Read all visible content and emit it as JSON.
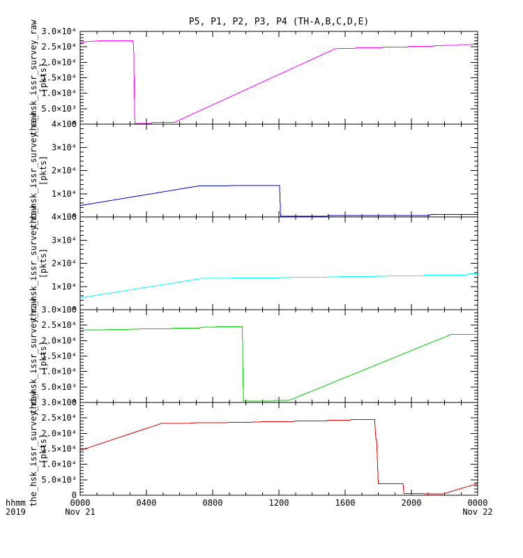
{
  "title": "P5, P1, P2, P3, P4 (TH-A,B,C,D,E)",
  "chart_data": {
    "type": "line",
    "title": "P5, P1, P2, P3, P4 (TH-A,B,C,D,E)",
    "grid": false,
    "legend": "none",
    "time_axis": {
      "unit_label": "hhmm",
      "year_label": "2019",
      "range_hours": [
        0,
        24
      ],
      "minor_tick_hours": 1,
      "major_ticks": [
        {
          "hour": 0,
          "label": "0000",
          "date": "Nov 21"
        },
        {
          "hour": 4,
          "label": "0400"
        },
        {
          "hour": 8,
          "label": "0800"
        },
        {
          "hour": 12,
          "label": "1200"
        },
        {
          "hour": 16,
          "label": "1600"
        },
        {
          "hour": 20,
          "label": "2000"
        },
        {
          "hour": 24,
          "label": "0000",
          "date": "Nov 22"
        }
      ]
    },
    "panels": [
      {
        "id": "tha",
        "ylabel": "tha_hsk_issr_survey_raw",
        "yunits": "[pkts]",
        "color": "#ff00ff",
        "ylim": [
          0,
          30000
        ],
        "ytick_minor_step": 1000,
        "yticks": [
          {
            "v": 0,
            "label": "0"
          },
          {
            "v": 5000,
            "label": "5.0×10³"
          },
          {
            "v": 10000,
            "label": "1.0×10⁴"
          },
          {
            "v": 15000,
            "label": "1.5×10⁴"
          },
          {
            "v": 20000,
            "label": "2.0×10⁴"
          },
          {
            "v": 25000,
            "label": "2.5×10⁴"
          },
          {
            "v": 30000,
            "label": "3.0×10⁴"
          }
        ],
        "points": [
          [
            0,
            26500
          ],
          [
            1.3,
            27000
          ],
          [
            3.2,
            27000
          ],
          [
            3.23,
            24000
          ],
          [
            3.27,
            9000
          ],
          [
            3.3,
            200
          ],
          [
            4.3,
            200
          ],
          [
            4.35,
            600
          ],
          [
            5.7,
            600
          ],
          [
            15.4,
            24400
          ],
          [
            16.6,
            24500
          ],
          [
            16.65,
            24700
          ],
          [
            18.2,
            24700
          ],
          [
            18.25,
            24900
          ],
          [
            19.8,
            24900
          ],
          [
            19.85,
            25100
          ],
          [
            21.3,
            25200
          ],
          [
            21.35,
            25400
          ],
          [
            22.8,
            25500
          ],
          [
            22.85,
            25700
          ],
          [
            24,
            25800
          ]
        ]
      },
      {
        "id": "thb",
        "ylabel": "thb_hsk_issr_survey_raw",
        "yunits": "[pkts]",
        "color": "#0000cc",
        "ylim": [
          0,
          40000
        ],
        "ytick_minor_step": 2000,
        "yticks": [
          {
            "v": 0,
            "label": "0"
          },
          {
            "v": 10000,
            "label": "1×10⁴"
          },
          {
            "v": 20000,
            "label": "2×10⁴"
          },
          {
            "v": 30000,
            "label": "3×10⁴"
          },
          {
            "v": 40000,
            "label": "4×10⁴"
          }
        ],
        "points": [
          [
            0,
            4900
          ],
          [
            7.2,
            13400
          ],
          [
            9.0,
            13450
          ],
          [
            9.05,
            13600
          ],
          [
            12.04,
            13600
          ],
          [
            12.1,
            300
          ],
          [
            14.9,
            300
          ],
          [
            14.95,
            600
          ],
          [
            21.1,
            600
          ],
          [
            21.15,
            1000
          ],
          [
            24,
            1000
          ]
        ]
      },
      {
        "id": "thc",
        "ylabel": "thc_hsk_issr_survey_raw",
        "yunits": "[pkts]",
        "color": "#00ffff",
        "ylim": [
          0,
          40000
        ],
        "ytick_minor_step": 2000,
        "yticks": [
          {
            "v": 0,
            "label": "0"
          },
          {
            "v": 10000,
            "label": "1×10⁴"
          },
          {
            "v": 20000,
            "label": "2×10⁴"
          },
          {
            "v": 30000,
            "label": "3×10⁴"
          },
          {
            "v": 40000,
            "label": "4×10⁴"
          }
        ],
        "points": [
          [
            0,
            5100
          ],
          [
            7.4,
            13500
          ],
          [
            9.1,
            13550
          ],
          [
            9.15,
            13700
          ],
          [
            12.0,
            13700
          ],
          [
            12.05,
            13900
          ],
          [
            14.9,
            13950
          ],
          [
            14.95,
            14200
          ],
          [
            17.8,
            14250
          ],
          [
            17.85,
            14500
          ],
          [
            20.7,
            14550
          ],
          [
            20.75,
            14900
          ],
          [
            23.3,
            14950
          ],
          [
            23.35,
            15400
          ],
          [
            24,
            15500
          ]
        ]
      },
      {
        "id": "thd",
        "ylabel": "thd_hsk_issr_survey_raw",
        "yunits": "[pkts]",
        "color": "#00cc00",
        "ylim": [
          0,
          30000
        ],
        "ytick_minor_step": 1000,
        "yticks": [
          {
            "v": 0,
            "label": "0"
          },
          {
            "v": 5000,
            "label": "5.0×10³"
          },
          {
            "v": 10000,
            "label": "1.0×10⁴"
          },
          {
            "v": 15000,
            "label": "1.5×10⁴"
          },
          {
            "v": 20000,
            "label": "2.0×10⁴"
          },
          {
            "v": 25000,
            "label": "2.5×10⁴"
          },
          {
            "v": 30000,
            "label": "3.0×10⁴"
          }
        ],
        "points": [
          [
            0,
            23400
          ],
          [
            1.5,
            23450
          ],
          [
            1.55,
            23600
          ],
          [
            3.5,
            23650
          ],
          [
            3.55,
            23800
          ],
          [
            5.5,
            23850
          ],
          [
            5.55,
            24000
          ],
          [
            7.2,
            24050
          ],
          [
            7.25,
            24300
          ],
          [
            8.2,
            24350
          ],
          [
            8.25,
            24500
          ],
          [
            9.78,
            24500
          ],
          [
            9.8,
            20000
          ],
          [
            9.83,
            7000
          ],
          [
            9.86,
            400
          ],
          [
            11.7,
            400
          ],
          [
            11.75,
            650
          ],
          [
            12.6,
            650
          ],
          [
            22.3,
            21800
          ],
          [
            22.35,
            21950
          ],
          [
            24,
            21950
          ]
        ]
      },
      {
        "id": "the",
        "ylabel": "the_hsk_issr_survey_raw",
        "yunits": "[pkts]",
        "color": "#dd0000",
        "ylim": [
          0,
          30000
        ],
        "ytick_minor_step": 1000,
        "yticks": [
          {
            "v": 0,
            "label": "0"
          },
          {
            "v": 5000,
            "label": "5.0×10³"
          },
          {
            "v": 10000,
            "label": "1.0×10⁴"
          },
          {
            "v": 15000,
            "label": "1.5×10⁴"
          },
          {
            "v": 20000,
            "label": "2.0×10⁴"
          },
          {
            "v": 25000,
            "label": "2.5×10⁴"
          },
          {
            "v": 30000,
            "label": "3.0×10⁴"
          }
        ],
        "points": [
          [
            0,
            14500
          ],
          [
            4.9,
            23200
          ],
          [
            6.9,
            23300
          ],
          [
            6.95,
            23450
          ],
          [
            8.9,
            23500
          ],
          [
            8.95,
            23600
          ],
          [
            10.9,
            23650
          ],
          [
            10.95,
            23800
          ],
          [
            12.9,
            23850
          ],
          [
            12.95,
            24000
          ],
          [
            14.9,
            24050
          ],
          [
            14.95,
            24250
          ],
          [
            16.3,
            24300
          ],
          [
            16.35,
            24500
          ],
          [
            17.78,
            24500
          ],
          [
            17.82,
            21000
          ],
          [
            17.86,
            18000
          ],
          [
            17.9,
            18000
          ],
          [
            18.0,
            3700
          ],
          [
            19.5,
            3700
          ],
          [
            19.55,
            600
          ],
          [
            21.9,
            400
          ],
          [
            24,
            3800
          ]
        ]
      }
    ]
  }
}
